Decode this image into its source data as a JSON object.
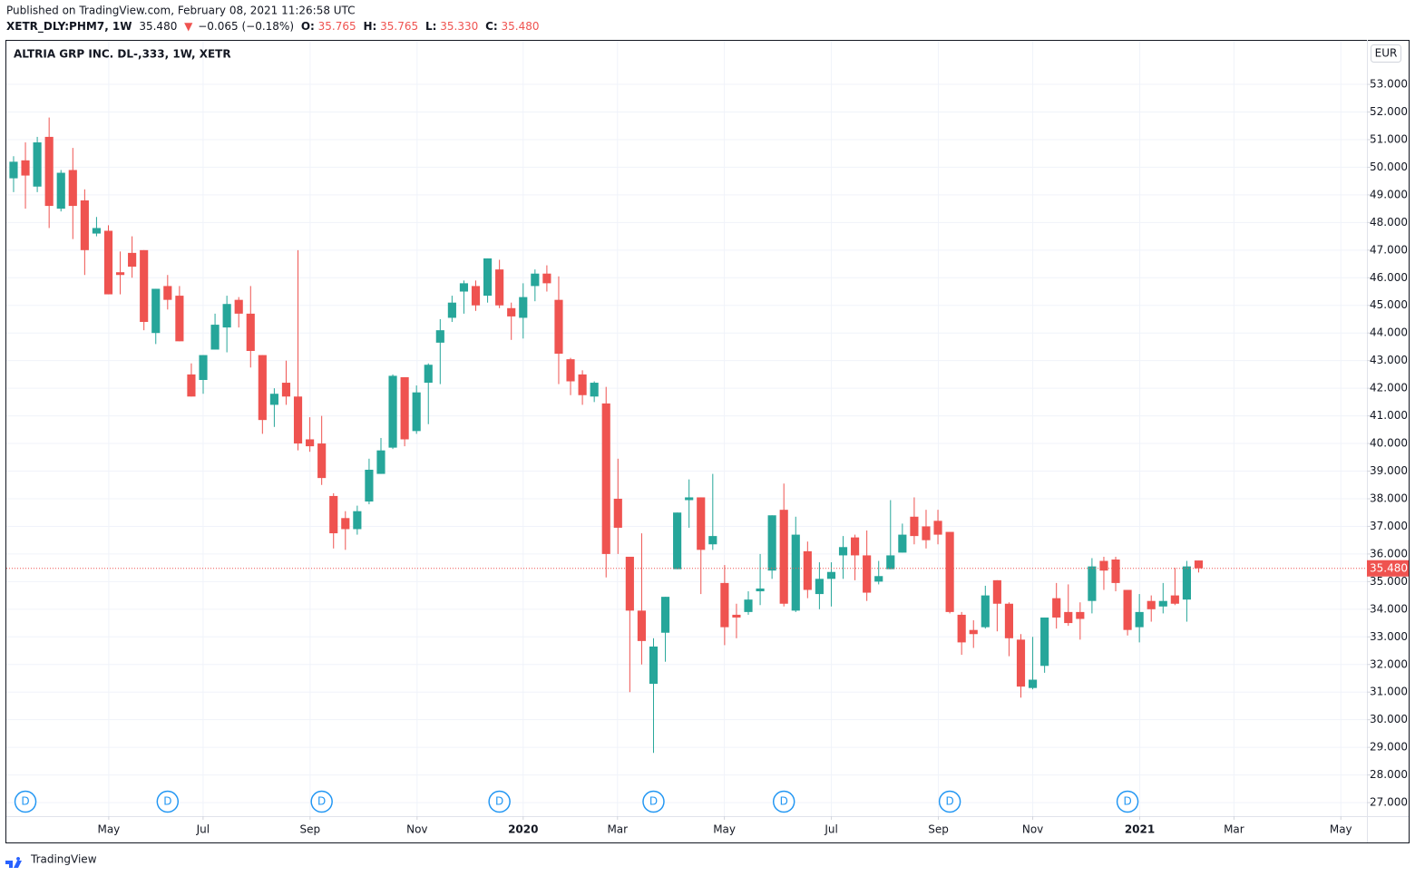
{
  "header": {
    "published": "Published on TradingView.com, February 08, 2021 11:26:58 UTC",
    "symbol": "XETR_DLY:PHM7, 1W",
    "last": "35.480",
    "arrow": "▼",
    "change": "−0.065 (−0.18%)",
    "o_label": "O:",
    "o": "35.765",
    "h_label": "H:",
    "h": "35.765",
    "l_label": "L:",
    "l": "35.330",
    "c_label": "C:",
    "c": "35.480"
  },
  "footer": {
    "brand": "TradingView"
  },
  "chart_data": {
    "type": "candlestick",
    "title": "ALTRIA GRP INC. DL-,333, 1W, XETR",
    "currency": "EUR",
    "up_color": "#26a69a",
    "down_color": "#ef5350",
    "grid": true,
    "open": [
      49.6,
      50.25,
      49.3,
      51.1,
      48.5,
      49.9,
      48.8,
      47.6,
      47.7,
      46.2,
      46.9,
      47.0,
      44.0,
      45.7,
      45.35,
      42.5,
      42.3,
      43.4,
      44.2,
      45.2,
      44.7,
      43.2,
      41.4,
      42.2,
      41.7,
      40.15,
      40.0,
      38.1,
      37.3,
      36.9,
      37.9,
      38.9,
      39.85,
      42.4,
      40.45,
      42.2,
      43.65,
      44.55,
      45.5,
      45.7,
      45.35,
      46.3,
      44.9,
      44.55,
      45.7,
      46.15,
      45.2,
      43.05,
      42.5,
      41.7,
      41.45,
      38.0,
      35.9,
      33.95,
      31.3,
      33.15,
      35.45,
      37.95,
      38.05,
      36.35,
      34.95,
      33.8,
      33.9,
      34.65,
      35.4,
      37.6,
      33.95,
      36.1,
      34.55,
      35.1,
      35.95,
      36.6,
      35.95,
      35.0,
      35.45,
      36.05,
      37.35,
      37.0,
      37.2,
      36.8,
      33.8,
      33.25,
      33.35,
      35.05,
      34.2,
      32.9,
      31.15,
      31.95,
      34.4,
      33.9,
      33.9,
      34.3,
      35.75,
      35.8,
      34.7,
      33.35,
      34.3,
      34.1,
      34.5,
      34.35,
      35.765
    ],
    "high": [
      50.4,
      50.9,
      51.1,
      51.8,
      49.9,
      50.7,
      49.2,
      48.2,
      47.9,
      46.95,
      47.5,
      47.0,
      45.6,
      46.1,
      45.7,
      42.9,
      43.2,
      44.7,
      45.35,
      45.3,
      45.7,
      43.2,
      42.0,
      43.0,
      47.0,
      40.95,
      41.0,
      38.2,
      37.55,
      37.75,
      39.45,
      40.2,
      42.5,
      42.4,
      42.1,
      42.9,
      44.5,
      45.35,
      45.9,
      45.9,
      46.7,
      46.65,
      45.1,
      45.8,
      46.3,
      46.45,
      46.05,
      43.1,
      42.65,
      42.25,
      42.05,
      39.45,
      35.9,
      36.75,
      32.95,
      34.45,
      37.5,
      38.7,
      38.05,
      38.9,
      35.6,
      34.2,
      34.65,
      36.0,
      37.4,
      38.55,
      37.35,
      36.45,
      35.7,
      35.7,
      36.65,
      36.7,
      36.85,
      35.75,
      37.95,
      37.1,
      38.05,
      37.6,
      37.6,
      36.8,
      33.9,
      33.6,
      34.85,
      35.05,
      34.25,
      33.1,
      33.0,
      33.7,
      34.95,
      34.9,
      34.25,
      35.85,
      35.9,
      35.9,
      34.7,
      34.55,
      34.5,
      34.95,
      35.5,
      35.75,
      35.765
    ],
    "low": [
      49.1,
      48.5,
      49.1,
      47.8,
      48.4,
      47.4,
      46.1,
      47.5,
      45.4,
      45.4,
      46.0,
      44.1,
      43.6,
      44.85,
      43.7,
      41.7,
      41.8,
      43.4,
      43.3,
      44.2,
      42.75,
      40.35,
      40.6,
      41.4,
      39.75,
      39.7,
      38.5,
      36.2,
      36.15,
      36.7,
      37.8,
      38.9,
      39.8,
      39.9,
      40.35,
      40.7,
      42.15,
      44.4,
      44.7,
      44.8,
      45.1,
      44.9,
      43.75,
      43.8,
      45.15,
      45.5,
      42.15,
      41.75,
      41.4,
      41.5,
      35.15,
      36.0,
      31.0,
      32.0,
      28.8,
      32.1,
      35.45,
      36.95,
      34.55,
      36.15,
      32.7,
      32.95,
      33.8,
      34.15,
      35.1,
      34.1,
      33.9,
      34.4,
      34.0,
      34.1,
      35.1,
      35.05,
      34.3,
      34.9,
      35.45,
      36.05,
      36.35,
      36.2,
      36.35,
      33.85,
      32.35,
      32.6,
      33.3,
      33.2,
      32.3,
      30.8,
      31.1,
      31.7,
      33.3,
      33.4,
      32.9,
      33.85,
      34.7,
      34.65,
      33.05,
      32.8,
      33.55,
      33.85,
      34.15,
      33.55,
      35.33
    ],
    "close": [
      50.2,
      49.7,
      50.9,
      48.6,
      49.8,
      48.6,
      47.0,
      47.8,
      45.4,
      46.1,
      46.4,
      44.4,
      45.6,
      45.2,
      43.7,
      41.7,
      43.2,
      44.3,
      45.05,
      44.7,
      43.35,
      40.85,
      41.8,
      41.7,
      40.0,
      39.9,
      38.75,
      36.75,
      36.9,
      37.55,
      39.05,
      39.75,
      42.45,
      40.15,
      41.85,
      42.85,
      44.1,
      45.1,
      45.8,
      45.0,
      46.7,
      45.0,
      44.6,
      45.3,
      46.15,
      45.8,
      43.25,
      42.25,
      41.75,
      42.2,
      36.0,
      36.95,
      33.95,
      32.85,
      32.65,
      34.45,
      37.5,
      38.05,
      36.15,
      36.65,
      33.35,
      33.7,
      34.35,
      34.75,
      37.4,
      34.2,
      36.7,
      34.7,
      35.1,
      35.35,
      36.25,
      35.95,
      34.6,
      35.2,
      35.95,
      36.7,
      36.65,
      36.5,
      36.7,
      33.9,
      32.8,
      33.1,
      34.5,
      34.2,
      32.95,
      31.2,
      31.45,
      33.7,
      33.7,
      33.5,
      33.65,
      35.55,
      35.4,
      34.95,
      33.25,
      33.9,
      34.0,
      34.3,
      34.2,
      35.55,
      35.48
    ],
    "last_price": {
      "value": 35.48,
      "label": "35.480"
    },
    "dividends": [
      {
        "label": "D",
        "week": 1
      },
      {
        "label": "D",
        "week": 13
      },
      {
        "label": "D",
        "week": 26
      },
      {
        "label": "D",
        "week": 41
      },
      {
        "label": "D",
        "week": 54
      },
      {
        "label": "D",
        "week": 65
      },
      {
        "label": "D",
        "week": 79
      },
      {
        "label": "D",
        "week": 94
      }
    ],
    "xlim": [
      -0.61,
      114.2
    ],
    "xticks": [
      {
        "value": 8.03,
        "label": "May"
      },
      {
        "value": 15.99,
        "label": "Jul"
      },
      {
        "value": 25.02,
        "label": "Sep"
      },
      {
        "value": 34.05,
        "label": "Nov"
      },
      {
        "value": 43.0,
        "label": "2020"
      },
      {
        "value": 50.96,
        "label": "Mar"
      },
      {
        "value": 59.98,
        "label": "May"
      },
      {
        "value": 69.01,
        "label": "Jul"
      },
      {
        "value": 78.04,
        "label": "Sep"
      },
      {
        "value": 86.0,
        "label": "Nov"
      },
      {
        "value": 95.03,
        "label": "2021"
      },
      {
        "value": 102.98,
        "label": "Mar"
      },
      {
        "value": 112.0,
        "label": "May"
      }
    ],
    "ylim": [
      26.51,
      54.61
    ],
    "yticks": [
      {
        "value": 27,
        "label": "27.000"
      },
      {
        "value": 28,
        "label": "28.000"
      },
      {
        "value": 29,
        "label": "29.000"
      },
      {
        "value": 30,
        "label": "30.000"
      },
      {
        "value": 31,
        "label": "31.000"
      },
      {
        "value": 32,
        "label": "32.000"
      },
      {
        "value": 33,
        "label": "33.000"
      },
      {
        "value": 34,
        "label": "34.000"
      },
      {
        "value": 35,
        "label": "35.000"
      },
      {
        "value": 36,
        "label": "36.000"
      },
      {
        "value": 37,
        "label": "37.000"
      },
      {
        "value": 38,
        "label": "38.000"
      },
      {
        "value": 39,
        "label": "39.000"
      },
      {
        "value": 40,
        "label": "40.000"
      },
      {
        "value": 41,
        "label": "41.000"
      },
      {
        "value": 42,
        "label": "42.000"
      },
      {
        "value": 43,
        "label": "43.000"
      },
      {
        "value": 44,
        "label": "44.000"
      },
      {
        "value": 45,
        "label": "45.000"
      },
      {
        "value": 46,
        "label": "46.000"
      },
      {
        "value": 47,
        "label": "47.000"
      },
      {
        "value": 48,
        "label": "48.000"
      },
      {
        "value": 49,
        "label": "49.000"
      },
      {
        "value": 50,
        "label": "50.000"
      },
      {
        "value": 51,
        "label": "51.000"
      },
      {
        "value": 52,
        "label": "52.000"
      },
      {
        "value": 53,
        "label": "53.000"
      }
    ]
  }
}
